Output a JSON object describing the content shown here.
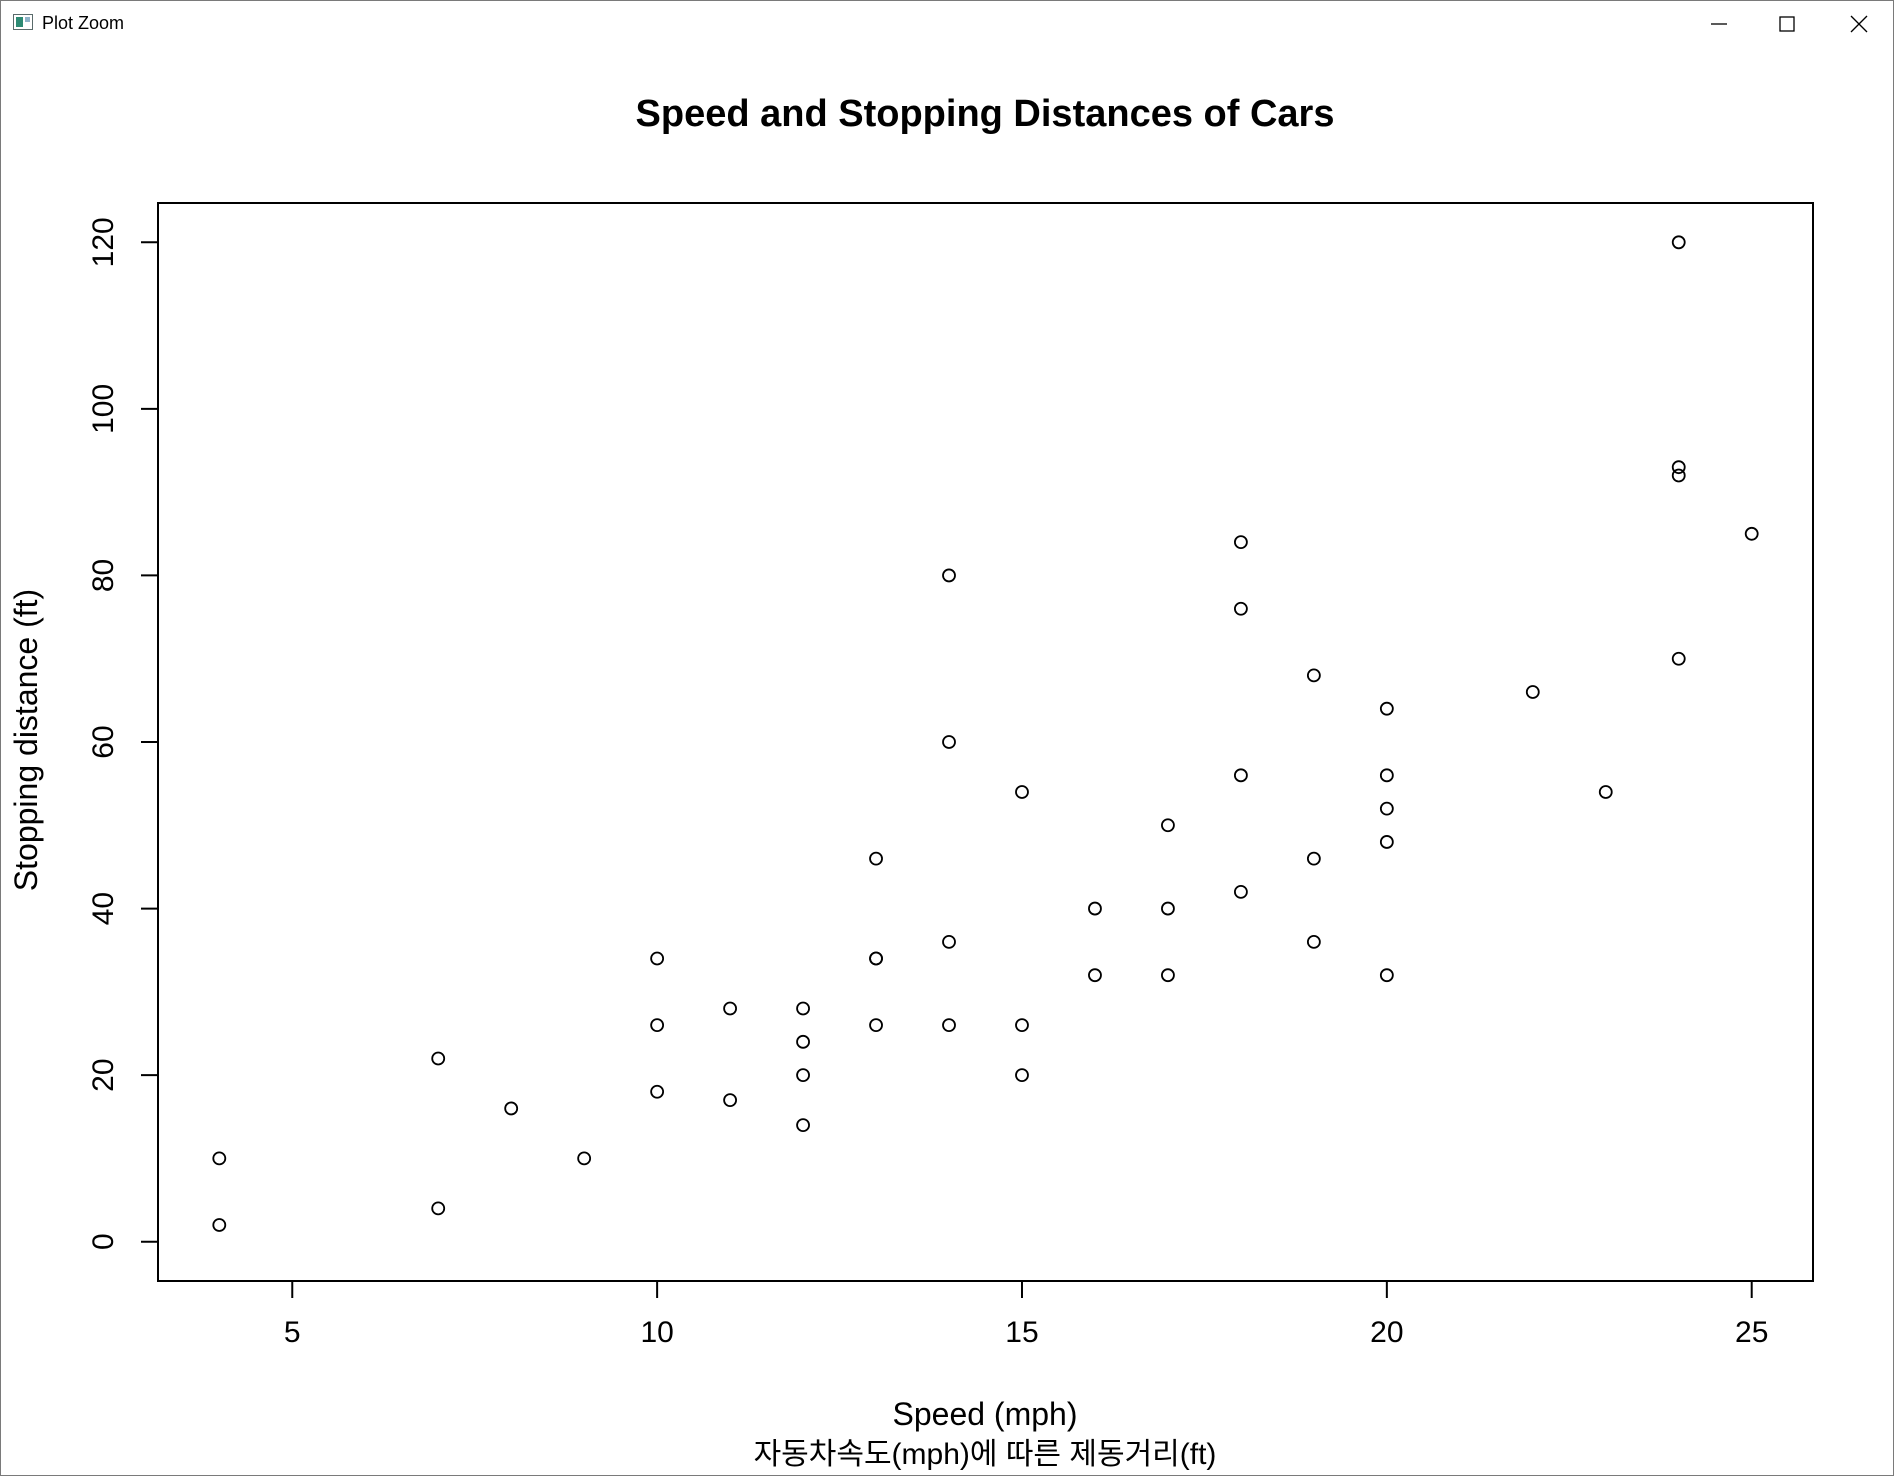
{
  "window": {
    "title": "Plot Zoom",
    "icons": {
      "app": "plot-window-icon",
      "minimize": "minimize-icon",
      "maximize": "maximize-icon",
      "close": "close-icon"
    }
  },
  "chart_data": {
    "type": "scatter",
    "title": "Speed and Stopping Distances of Cars",
    "xlabel": "Speed (mph)",
    "ylabel": "Stopping distance (ft)",
    "subtitle": "자동차속도(mph)에 따른 제동거리(ft)",
    "xlim": [
      3.16,
      25.84
    ],
    "ylim": [
      -4.72,
      124.72
    ],
    "xticks": [
      5,
      10,
      15,
      20,
      25
    ],
    "yticks": [
      0,
      20,
      40,
      60,
      80,
      100,
      120
    ],
    "grid": false,
    "marker": "open-circle",
    "color": "#000000",
    "points": [
      [
        4,
        2
      ],
      [
        4,
        10
      ],
      [
        7,
        4
      ],
      [
        7,
        22
      ],
      [
        8,
        16
      ],
      [
        9,
        10
      ],
      [
        10,
        18
      ],
      [
        10,
        26
      ],
      [
        10,
        34
      ],
      [
        11,
        17
      ],
      [
        11,
        28
      ],
      [
        12,
        14
      ],
      [
        12,
        20
      ],
      [
        12,
        24
      ],
      [
        12,
        28
      ],
      [
        13,
        26
      ],
      [
        13,
        34
      ],
      [
        13,
        34
      ],
      [
        13,
        46
      ],
      [
        14,
        26
      ],
      [
        14,
        36
      ],
      [
        14,
        60
      ],
      [
        14,
        80
      ],
      [
        15,
        20
      ],
      [
        15,
        26
      ],
      [
        15,
        54
      ],
      [
        16,
        32
      ],
      [
        16,
        40
      ],
      [
        17,
        32
      ],
      [
        17,
        40
      ],
      [
        17,
        50
      ],
      [
        18,
        42
      ],
      [
        18,
        56
      ],
      [
        18,
        76
      ],
      [
        18,
        84
      ],
      [
        19,
        36
      ],
      [
        19,
        46
      ],
      [
        19,
        68
      ],
      [
        20,
        32
      ],
      [
        20,
        48
      ],
      [
        20,
        52
      ],
      [
        20,
        56
      ],
      [
        20,
        64
      ],
      [
        22,
        66
      ],
      [
        23,
        54
      ],
      [
        24,
        70
      ],
      [
        24,
        92
      ],
      [
        24,
        93
      ],
      [
        24,
        120
      ],
      [
        25,
        85
      ]
    ]
  }
}
